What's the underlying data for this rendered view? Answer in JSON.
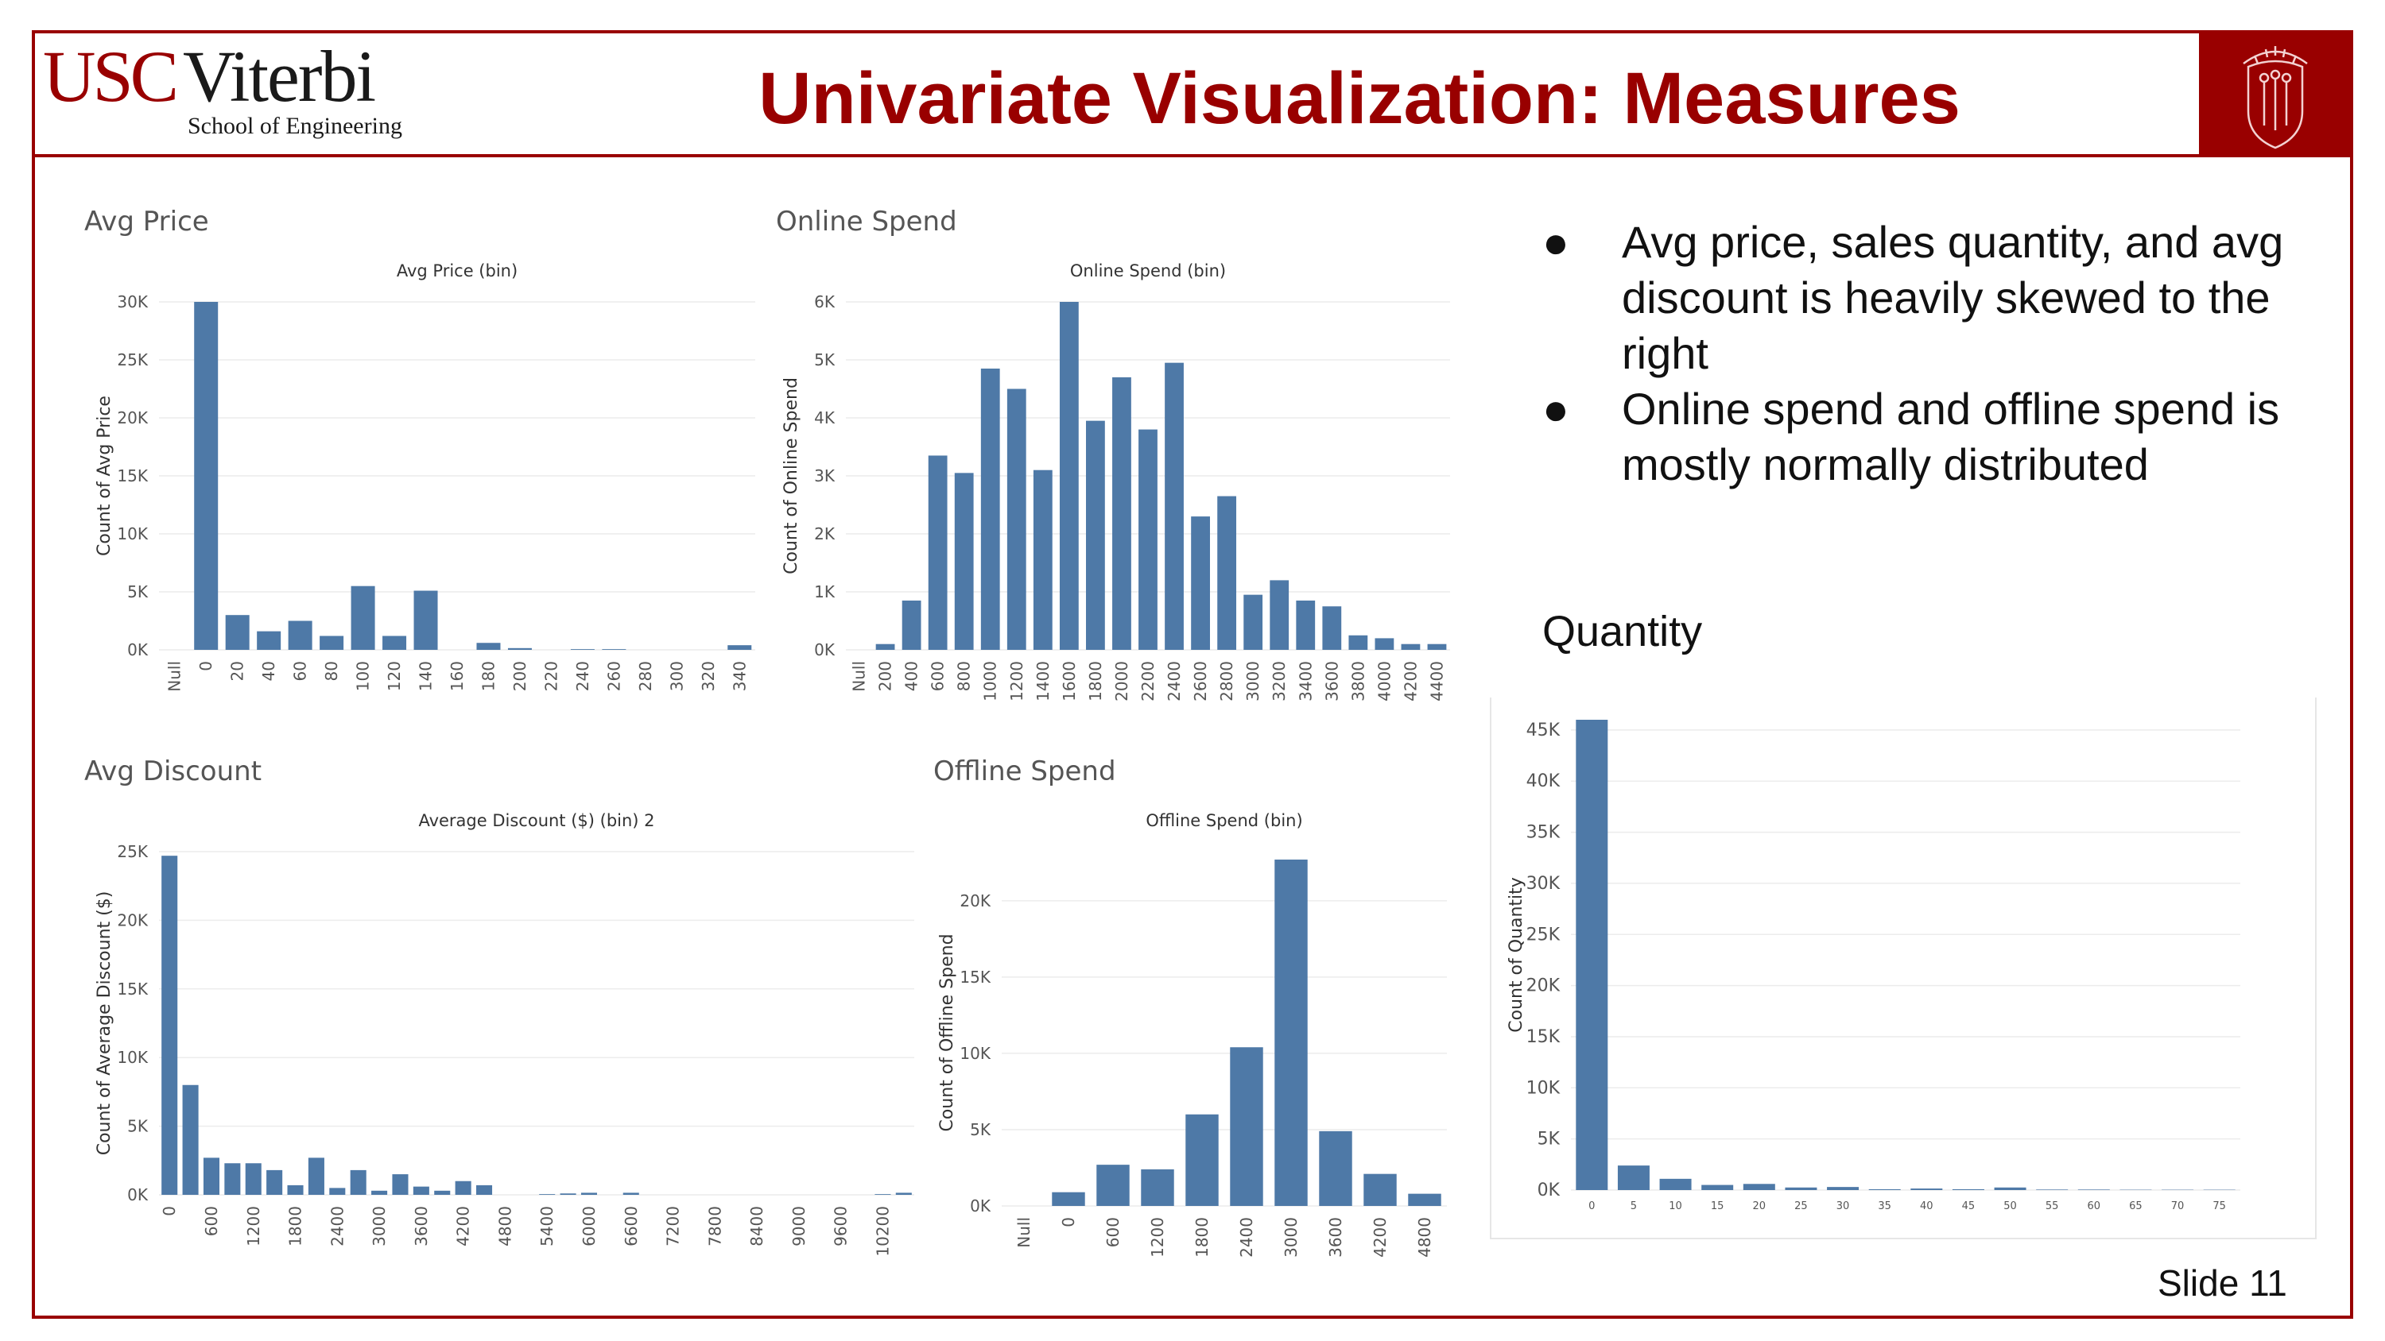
{
  "header": {
    "logo_usc": "USC",
    "logo_viterbi": "Viterbi",
    "logo_sub": "School of Engineering",
    "title": "Univariate Visualization: Measures"
  },
  "bullets": [
    "Avg price, sales quantity, and avg discount is heavily skewed to the right",
    "Online spend and offline spend is mostly normally distributed"
  ],
  "bullet_symbol": "●",
  "section_quantity": "Quantity",
  "slide_number": "Slide 11",
  "colors": {
    "accent": "#990000",
    "bar": "#4e79a7",
    "grid": "#ececec",
    "text": "#555555"
  },
  "chart_data": [
    {
      "id": "avg_price",
      "type": "bar",
      "panel_title": "Avg Price",
      "title": "Avg Price (bin)",
      "xlabel": "",
      "ylabel": "Count of Avg Price",
      "categories": [
        "Null",
        "0",
        "20",
        "40",
        "60",
        "80",
        "100",
        "120",
        "140",
        "160",
        "180",
        "200",
        "220",
        "240",
        "260",
        "280",
        "300",
        "320",
        "340"
      ],
      "values": [
        0,
        30000,
        3000,
        1600,
        2500,
        1200,
        5500,
        1200,
        5100,
        0,
        600,
        150,
        0,
        60,
        60,
        0,
        0,
        0,
        400
      ],
      "yticks": [
        0,
        5000,
        10000,
        15000,
        20000,
        25000,
        30000
      ],
      "ytick_labels": [
        "0K",
        "5K",
        "10K",
        "15K",
        "20K",
        "25K",
        "30K"
      ],
      "ylim": [
        0,
        30000
      ]
    },
    {
      "id": "online_spend",
      "type": "bar",
      "panel_title": "Online Spend",
      "title": "Online Spend (bin)",
      "xlabel": "",
      "ylabel": "Count of Online Spend",
      "categories": [
        "Null",
        "200",
        "400",
        "600",
        "800",
        "1000",
        "1200",
        "1400",
        "1600",
        "1800",
        "2000",
        "2200",
        "2400",
        "2600",
        "2800",
        "3000",
        "3200",
        "3400",
        "3600",
        "3800",
        "4000",
        "4200",
        "4400"
      ],
      "values": [
        0,
        100,
        850,
        3350,
        3050,
        4850,
        4500,
        3100,
        6000,
        3950,
        4700,
        3800,
        4950,
        2300,
        2650,
        950,
        1200,
        850,
        750,
        250,
        200,
        100,
        100
      ],
      "yticks": [
        0,
        1000,
        2000,
        3000,
        4000,
        5000,
        6000
      ],
      "ytick_labels": [
        "0K",
        "1K",
        "2K",
        "3K",
        "4K",
        "5K",
        "6K"
      ],
      "ylim": [
        0,
        6000
      ]
    },
    {
      "id": "avg_discount",
      "type": "bar",
      "panel_title": "Avg Discount",
      "title": "Average Discount ($) (bin) 2",
      "xlabel": "",
      "ylabel": "Count of Average Discount ($)",
      "categories": [
        "0",
        "300",
        "600",
        "900",
        "1200",
        "1500",
        "1800",
        "2100",
        "2400",
        "2700",
        "3000",
        "3300",
        "3600",
        "3900",
        "4200",
        "4500",
        "4800",
        "5100",
        "5400",
        "5700",
        "6000",
        "6300",
        "6600",
        "6900",
        "7200",
        "7500",
        "7800",
        "8100",
        "8400",
        "8700",
        "9000",
        "9300",
        "9600",
        "9900",
        "10200",
        "10500"
      ],
      "category_labels": [
        "0",
        "",
        "600",
        "",
        "1200",
        "",
        "1800",
        "",
        "2400",
        "",
        "3000",
        "",
        "3600",
        "",
        "4200",
        "",
        "4800",
        "",
        "5400",
        "",
        "6000",
        "",
        "6600",
        "",
        "7200",
        "",
        "7800",
        "",
        "8400",
        "",
        "9000",
        "",
        "9600",
        "",
        "10200",
        ""
      ],
      "values": [
        24700,
        8000,
        2700,
        2300,
        2300,
        1800,
        700,
        2700,
        500,
        1800,
        300,
        1500,
        600,
        300,
        1000,
        700,
        0,
        0,
        50,
        100,
        150,
        0,
        150,
        0,
        0,
        0,
        0,
        0,
        0,
        0,
        0,
        0,
        0,
        0,
        50,
        150
      ],
      "yticks": [
        0,
        5000,
        10000,
        15000,
        20000,
        25000
      ],
      "ytick_labels": [
        "0K",
        "5K",
        "10K",
        "15K",
        "20K",
        "25K"
      ],
      "ylim": [
        0,
        25000
      ]
    },
    {
      "id": "offline_spend",
      "type": "bar",
      "panel_title": "Offline Spend",
      "title": "Offline Spend (bin)",
      "xlabel": "",
      "ylabel": "Count of Offline Spend",
      "categories": [
        "Null",
        "0",
        "600",
        "1200",
        "1800",
        "2400",
        "3000",
        "3600",
        "4200",
        "4800"
      ],
      "values": [
        0,
        900,
        2700,
        2400,
        6000,
        10400,
        22700,
        4900,
        2100,
        800
      ],
      "yticks": [
        0,
        5000,
        10000,
        15000,
        20000
      ],
      "ytick_labels": [
        "0K",
        "5K",
        "10K",
        "15K",
        "20K"
      ],
      "ylim": [
        0,
        22700
      ]
    },
    {
      "id": "quantity",
      "type": "bar",
      "title": "",
      "xlabel": "",
      "ylabel": "Count of Quantity",
      "categories": [
        "0",
        "5",
        "10",
        "15",
        "20",
        "25",
        "30",
        "35",
        "40",
        "45",
        "50",
        "55",
        "60",
        "65",
        "70",
        "75"
      ],
      "values": [
        46000,
        2400,
        1100,
        500,
        600,
        250,
        300,
        80,
        150,
        80,
        250,
        50,
        50,
        30,
        30,
        30
      ],
      "yticks": [
        0,
        5000,
        10000,
        15000,
        20000,
        25000,
        30000,
        35000,
        40000,
        45000
      ],
      "ytick_labels": [
        "0K",
        "5K",
        "10K",
        "15K",
        "20K",
        "25K",
        "30K",
        "35K",
        "40K",
        "45K"
      ],
      "ylim": [
        0,
        46000
      ]
    }
  ]
}
